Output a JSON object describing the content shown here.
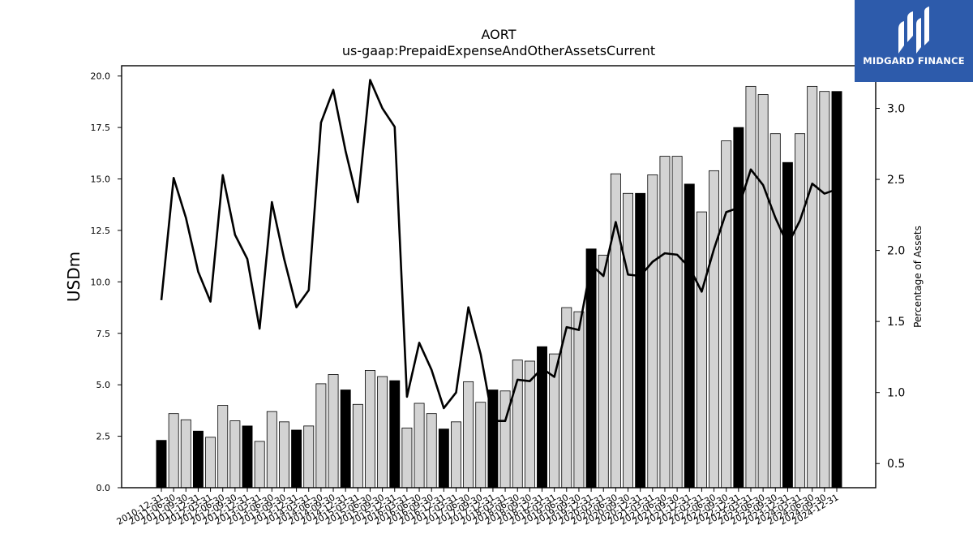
{
  "brand": {
    "name": "MIDGARD FINANCE",
    "bg_color": "#2d5bab",
    "icon": "midgard-logo-icon"
  },
  "chart_data": {
    "type": "bar",
    "title": "AORT",
    "subtitle": "us-gaap:PrepaidExpenseAndOtherAssetsCurrent",
    "ylabel": "USDm",
    "y2label": "Percentage of Assets",
    "ylim": [
      0,
      20.5
    ],
    "y2lim": [
      0.33,
      3.3
    ],
    "yticks": [
      "0.0",
      "2.5",
      "5.0",
      "7.5",
      "10.0",
      "12.5",
      "15.0",
      "17.5",
      "20.0"
    ],
    "y2ticks": [
      "0.5",
      "1.0",
      "1.5",
      "2.0",
      "2.5",
      "3.0"
    ],
    "grid": false,
    "bar_colors": {
      "annual": "#000000",
      "quarterly": "#d3d3d3"
    },
    "line_color": "#000000",
    "categories": [
      "2010-12-31",
      "2011-06-30",
      "2011-09-30",
      "2011-12-31",
      "2012-03-31",
      "2012-06-30",
      "2012-09-30",
      "2012-12-31",
      "2013-03-31",
      "2013-06-30",
      "2013-09-30",
      "2013-12-31",
      "2014-03-31",
      "2014-06-30",
      "2014-09-30",
      "2014-12-31",
      "2015-03-31",
      "2015-06-30",
      "2015-09-30",
      "2015-12-31",
      "2016-03-31",
      "2016-06-30",
      "2016-09-30",
      "2016-12-31",
      "2017-03-31",
      "2017-06-30",
      "2017-09-30",
      "2017-12-31",
      "2018-03-31",
      "2018-06-30",
      "2018-09-30",
      "2018-12-31",
      "2019-03-31",
      "2019-06-30",
      "2019-09-30",
      "2019-12-31",
      "2020-03-31",
      "2020-06-30",
      "2020-09-30",
      "2020-12-31",
      "2021-03-31",
      "2021-06-30",
      "2021-09-30",
      "2021-12-31",
      "2022-03-31",
      "2022-06-30",
      "2022-09-30",
      "2022-12-31",
      "2023-03-31",
      "2023-06-30",
      "2023-09-30",
      "2023-12-31",
      "2024-03-31",
      "2024-06-30",
      "2024-09-30",
      "2024-12-31"
    ],
    "series": [
      {
        "type": "bar",
        "values": [
          2.3,
          3.6,
          3.3,
          2.75,
          2.45,
          4.0,
          3.25,
          3.0,
          2.25,
          3.7,
          3.2,
          2.8,
          3.0,
          5.05,
          5.5,
          4.75,
          4.05,
          5.7,
          5.4,
          5.2,
          2.9,
          4.1,
          3.6,
          2.85,
          3.2,
          5.15,
          4.15,
          4.75,
          4.7,
          6.2,
          6.15,
          6.85,
          6.5,
          8.75,
          8.55,
          11.6,
          11.3,
          15.25,
          14.3,
          14.3,
          15.2,
          16.1,
          16.1,
          14.75,
          13.4,
          15.4,
          16.85,
          17.5,
          19.5,
          19.1,
          17.2,
          15.8,
          17.2,
          19.5,
          19.25,
          19.25
        ],
        "annual": [
          true,
          false,
          false,
          true,
          false,
          false,
          false,
          true,
          false,
          false,
          false,
          true,
          false,
          false,
          false,
          true,
          false,
          false,
          false,
          true,
          false,
          false,
          false,
          true,
          false,
          false,
          false,
          true,
          false,
          false,
          false,
          true,
          false,
          false,
          false,
          true,
          false,
          false,
          false,
          true,
          false,
          false,
          false,
          true,
          false,
          false,
          false,
          true,
          false,
          false,
          false,
          true,
          false,
          false,
          false,
          true
        ]
      },
      {
        "type": "line",
        "axis": "right",
        "values": [
          1.65,
          2.51,
          2.23,
          1.85,
          1.64,
          2.53,
          2.11,
          1.94,
          1.45,
          2.34,
          1.94,
          1.6,
          1.72,
          2.9,
          3.13,
          2.7,
          2.34,
          3.2,
          3.0,
          2.87,
          0.97,
          1.35,
          1.16,
          0.89,
          1.0,
          1.6,
          1.27,
          0.8,
          0.8,
          1.09,
          1.08,
          1.17,
          1.11,
          1.46,
          1.44,
          1.9,
          1.82,
          2.2,
          1.83,
          1.82,
          1.92,
          1.98,
          1.97,
          1.88,
          1.71,
          2.01,
          2.27,
          2.3,
          2.57,
          2.46,
          2.23,
          2.04,
          2.21,
          2.47,
          2.4,
          2.43
        ]
      }
    ]
  }
}
